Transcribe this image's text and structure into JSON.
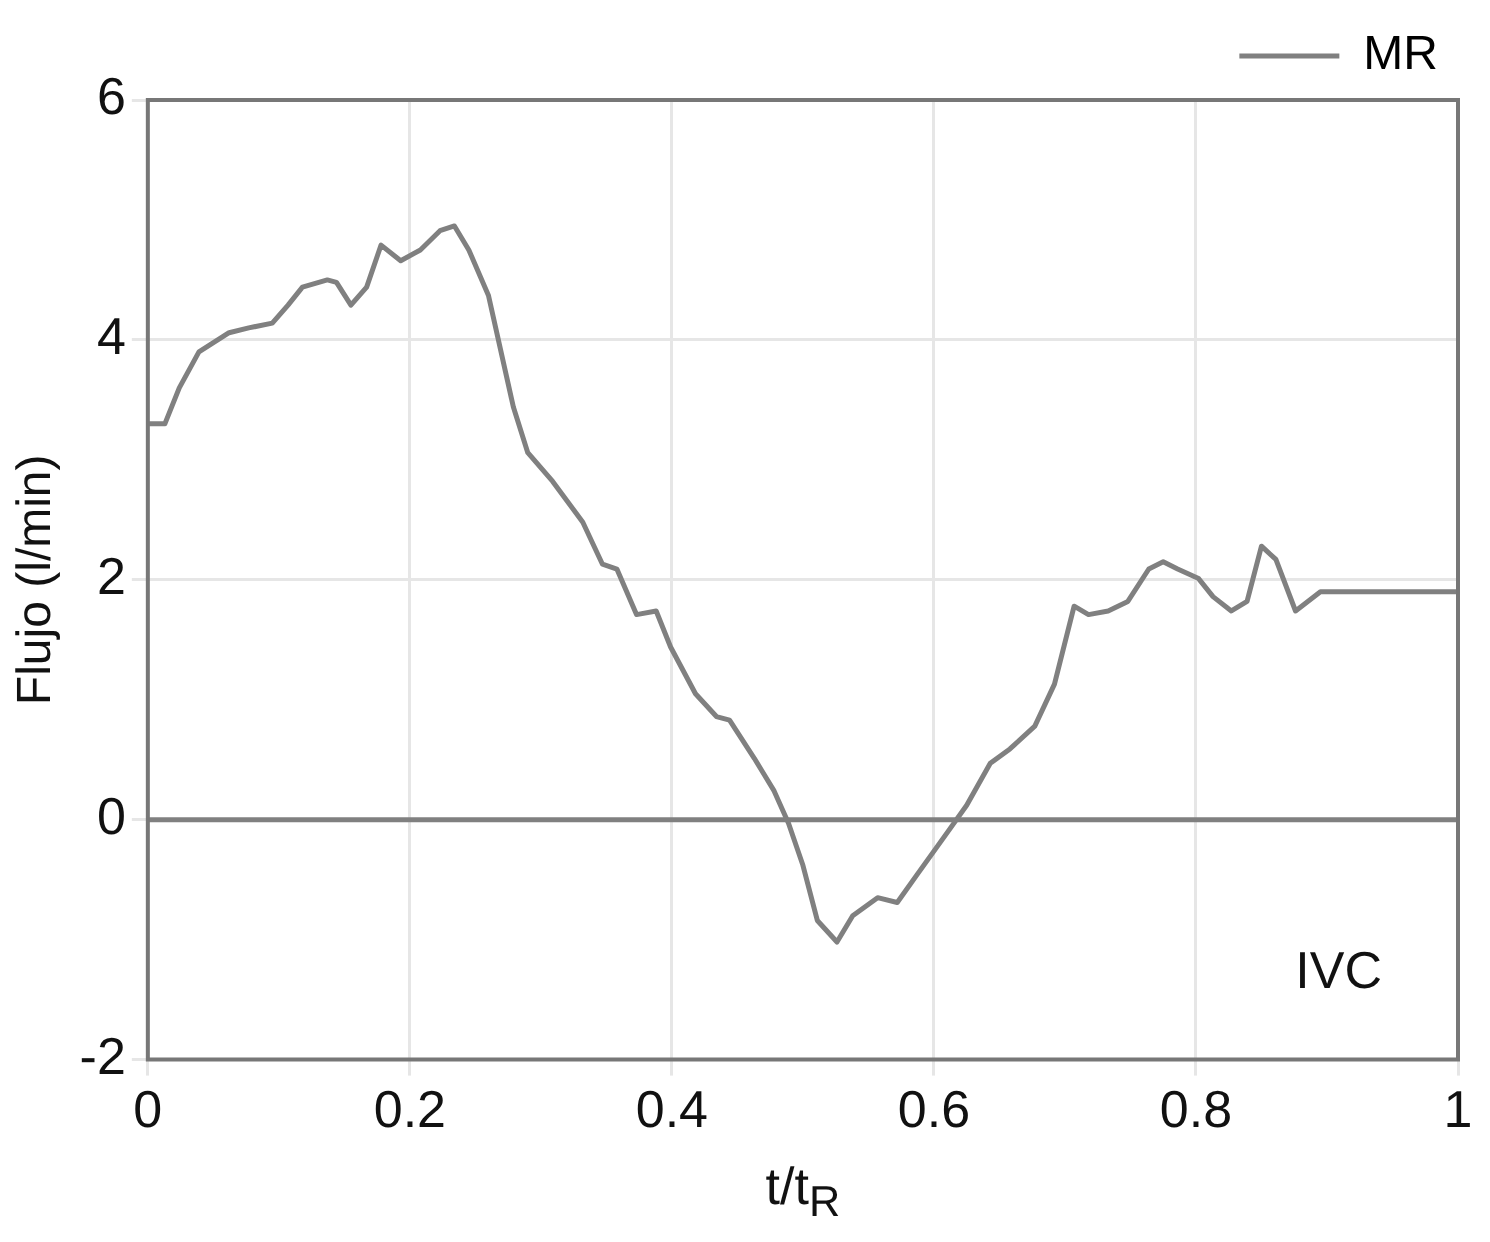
{
  "chart_data": {
    "type": "line",
    "xlabel": "t/t$_{R}$",
    "ylabel": "Flujo (l/min)",
    "annotations": [
      "IVC"
    ],
    "xlim": [
      0,
      1
    ],
    "xticks": [
      0,
      0.2,
      0.4,
      0.6,
      0.8,
      1
    ],
    "ylim": [
      -2,
      6
    ],
    "yticks": [
      -2,
      0,
      2,
      4,
      6
    ],
    "grid": true,
    "legend": "top right",
    "marker": "none",
    "line_style": "solid",
    "ref_lines": [
      {
        "axis": "y",
        "value": 0,
        "color": "#808080"
      }
    ],
    "series": [
      {
        "name": "MR",
        "color": "#808080",
        "x": [
          0,
          0.013,
          0.024,
          0.039,
          0.062,
          0.077,
          0.095,
          0.107,
          0.118,
          0.137,
          0.144,
          0.155,
          0.167,
          0.178,
          0.193,
          0.208,
          0.223,
          0.234,
          0.245,
          0.26,
          0.279,
          0.29,
          0.309,
          0.332,
          0.347,
          0.358,
          0.373,
          0.388,
          0.399,
          0.418,
          0.434,
          0.444,
          0.463,
          0.478,
          0.489,
          0.5,
          0.511,
          0.526,
          0.538,
          0.557,
          0.572,
          0.587,
          0.61,
          0.625,
          0.643,
          0.658,
          0.677,
          0.692,
          0.707,
          0.718,
          0.733,
          0.748,
          0.764,
          0.775,
          0.786,
          0.802,
          0.813,
          0.827,
          0.839,
          0.85,
          0.861,
          0.876,
          0.895,
          1
        ],
        "values": [
          3.3,
          3.3,
          3.6,
          3.9,
          4.06,
          4.1,
          4.14,
          4.29,
          4.44,
          4.5,
          4.48,
          4.29,
          4.44,
          4.79,
          4.66,
          4.75,
          4.91,
          4.95,
          4.75,
          4.37,
          3.44,
          3.06,
          2.82,
          2.48,
          2.13,
          2.09,
          1.71,
          1.74,
          1.44,
          1.05,
          0.86,
          0.83,
          0.51,
          0.24,
          -0.03,
          -0.38,
          -0.84,
          -1.02,
          -0.8,
          -0.65,
          -0.69,
          -0.46,
          -0.11,
          0.12,
          0.47,
          0.59,
          0.78,
          1.13,
          1.78,
          1.71,
          1.74,
          1.82,
          2.09,
          2.15,
          2.09,
          2.01,
          1.86,
          1.74,
          1.82,
          2.28,
          2.17,
          1.74,
          1.9,
          1.9
        ]
      }
    ]
  }
}
